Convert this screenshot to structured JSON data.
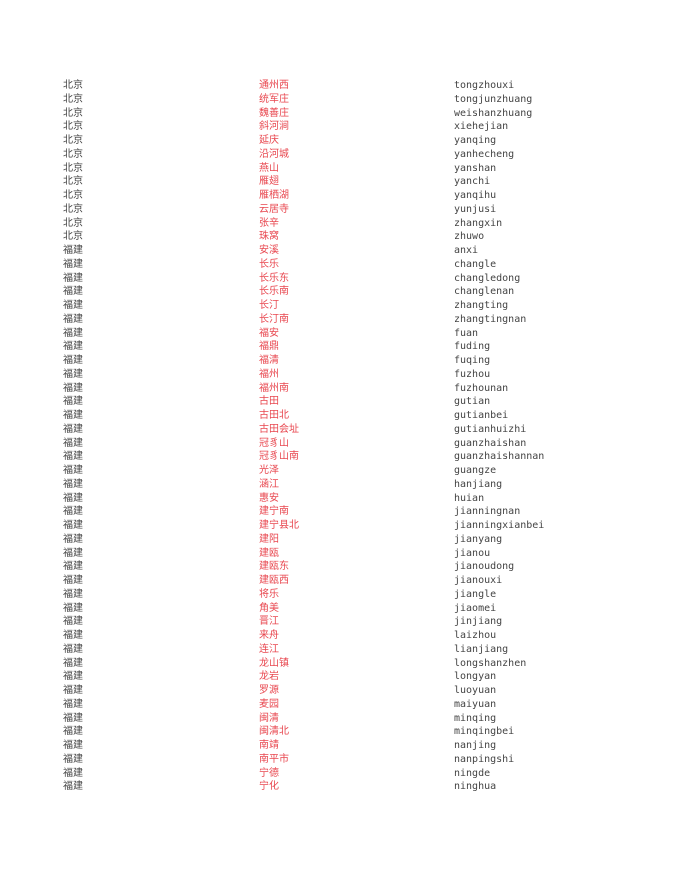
{
  "colors": {
    "province": "#444444",
    "station_name": "#e8474f",
    "pinyin": "#444444"
  },
  "rows": [
    {
      "province": "北京",
      "name": "通州西",
      "pinyin": "tongzhouxi"
    },
    {
      "province": "北京",
      "name": "统军庄",
      "pinyin": "tongjunzhuang"
    },
    {
      "province": "北京",
      "name": "魏善庄",
      "pinyin": "weishanzhuang"
    },
    {
      "province": "北京",
      "name": "斜河涧",
      "pinyin": "xiehejian"
    },
    {
      "province": "北京",
      "name": "延庆",
      "pinyin": "yanqing"
    },
    {
      "province": "北京",
      "name": "沿河城",
      "pinyin": "yanhecheng"
    },
    {
      "province": "北京",
      "name": "燕山",
      "pinyin": "yanshan"
    },
    {
      "province": "北京",
      "name": "雁翅",
      "pinyin": "yanchi"
    },
    {
      "province": "北京",
      "name": "雁栖湖",
      "pinyin": "yanqihu"
    },
    {
      "province": "北京",
      "name": "云居寺",
      "pinyin": "yunjusi"
    },
    {
      "province": "北京",
      "name": "张辛",
      "pinyin": "zhangxin"
    },
    {
      "province": "北京",
      "name": "珠窝",
      "pinyin": "zhuwo"
    },
    {
      "province": "福建",
      "name": "安溪",
      "pinyin": "anxi"
    },
    {
      "province": "福建",
      "name": "长乐",
      "pinyin": "changle"
    },
    {
      "province": "福建",
      "name": "长乐东",
      "pinyin": "changledong"
    },
    {
      "province": "福建",
      "name": "长乐南",
      "pinyin": "changlenan"
    },
    {
      "province": "福建",
      "name": "长汀",
      "pinyin": "zhangting"
    },
    {
      "province": "福建",
      "name": "长汀南",
      "pinyin": "zhangtingnan"
    },
    {
      "province": "福建",
      "name": "福安",
      "pinyin": "fuan"
    },
    {
      "province": "福建",
      "name": "福鼎",
      "pinyin": "fuding"
    },
    {
      "province": "福建",
      "name": "福清",
      "pinyin": "fuqing"
    },
    {
      "province": "福建",
      "name": "福州",
      "pinyin": "fuzhou"
    },
    {
      "province": "福建",
      "name": "福州南",
      "pinyin": "fuzhounan"
    },
    {
      "province": "福建",
      "name": "古田",
      "pinyin": "gutian"
    },
    {
      "province": "福建",
      "name": "古田北",
      "pinyin": "gutianbei"
    },
    {
      "province": "福建",
      "name": "古田会址",
      "pinyin": "gutianhuizhi"
    },
    {
      "province": "福建",
      "name": "冠豸山",
      "pinyin": "guanzhaishan"
    },
    {
      "province": "福建",
      "name": "冠豸山南",
      "pinyin": "guanzhaishannan"
    },
    {
      "province": "福建",
      "name": "光泽",
      "pinyin": "guangze"
    },
    {
      "province": "福建",
      "name": "涵江",
      "pinyin": "hanjiang"
    },
    {
      "province": "福建",
      "name": "惠安",
      "pinyin": "huian"
    },
    {
      "province": "福建",
      "name": "建宁南",
      "pinyin": "jianningnan"
    },
    {
      "province": "福建",
      "name": "建宁县北",
      "pinyin": "jianningxianbei"
    },
    {
      "province": "福建",
      "name": "建阳",
      "pinyin": "jianyang"
    },
    {
      "province": "福建",
      "name": "建瓯",
      "pinyin": "jianou"
    },
    {
      "province": "福建",
      "name": "建瓯东",
      "pinyin": "jianoudong"
    },
    {
      "province": "福建",
      "name": "建瓯西",
      "pinyin": "jianouxi"
    },
    {
      "province": "福建",
      "name": "将乐",
      "pinyin": "jiangle"
    },
    {
      "province": "福建",
      "name": "角美",
      "pinyin": "jiaomei"
    },
    {
      "province": "福建",
      "name": "晋江",
      "pinyin": "jinjiang"
    },
    {
      "province": "福建",
      "name": "来舟",
      "pinyin": "laizhou"
    },
    {
      "province": "福建",
      "name": "连江",
      "pinyin": "lianjiang"
    },
    {
      "province": "福建",
      "name": "龙山镇",
      "pinyin": "longshanzhen"
    },
    {
      "province": "福建",
      "name": "龙岩",
      "pinyin": "longyan"
    },
    {
      "province": "福建",
      "name": "罗源",
      "pinyin": "luoyuan"
    },
    {
      "province": "福建",
      "name": "麦园",
      "pinyin": "maiyuan"
    },
    {
      "province": "福建",
      "name": "闽清",
      "pinyin": "minqing"
    },
    {
      "province": "福建",
      "name": "闽清北",
      "pinyin": "minqingbei"
    },
    {
      "province": "福建",
      "name": "南靖",
      "pinyin": "nanjing"
    },
    {
      "province": "福建",
      "name": "南平市",
      "pinyin": "nanpingshi"
    },
    {
      "province": "福建",
      "name": "宁德",
      "pinyin": "ningde"
    },
    {
      "province": "福建",
      "name": "宁化",
      "pinyin": "ninghua"
    }
  ]
}
